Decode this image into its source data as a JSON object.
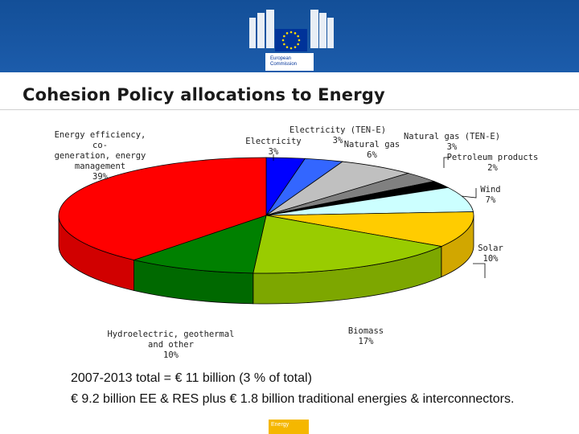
{
  "header": {
    "logo_line1": "European",
    "logo_line2": "Commission",
    "band_color": "#1c5cab",
    "flag_color": "#003399",
    "star_color": "#ffdd00"
  },
  "title": "Cohesion Policy allocations to Energy",
  "chart_data": {
    "type": "pie",
    "title": "",
    "slices": [
      {
        "label": [
          "Electricity (TEN-E)",
          "3%"
        ],
        "value": 3,
        "color": "#0000ff"
      },
      {
        "label": [
          "Electricity",
          "3%"
        ],
        "value": 3,
        "color": "#3366ff"
      },
      {
        "label": [
          "Natural gas",
          "6%"
        ],
        "value": 6,
        "color": "#c0c0c0"
      },
      {
        "label": [
          "Natural gas (TEN-E)",
          "3%"
        ],
        "value": 3,
        "color": "#808080"
      },
      {
        "label": [
          "Petroleum products",
          "2%"
        ],
        "value": 2,
        "color": "#000000"
      },
      {
        "label": [
          "Wind",
          "7%"
        ],
        "value": 7,
        "color": "#ccffff"
      },
      {
        "label": [
          "Solar",
          "10%"
        ],
        "value": 10,
        "color": "#ffcc00"
      },
      {
        "label": [
          "Biomass",
          "17%"
        ],
        "value": 17,
        "color": "#99cc00"
      },
      {
        "label": [
          "Hydroelectric, geothermal",
          "and other",
          "10%"
        ],
        "value": 10,
        "color": "#008000"
      },
      {
        "label": [
          "Energy efficiency, co-",
          "generation, energy",
          "management",
          "39%"
        ],
        "value": 39,
        "color": "#ff0000"
      }
    ]
  },
  "footer": {
    "total": "2007-2013 total = € 11 billion (3 % of total)",
    "breakdown": "€ 9.2 billion EE & RES plus € 1.8 billion traditional energies & interconnectors.",
    "badge": "Energy",
    "badge_color": "#f5b700"
  }
}
